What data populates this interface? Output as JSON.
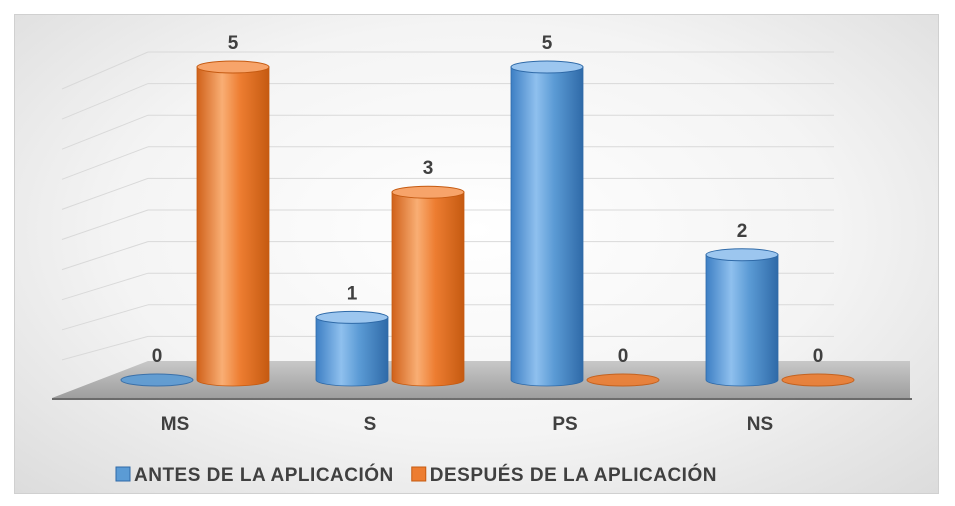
{
  "chart_data": {
    "type": "bar",
    "categories": [
      "MS",
      "S",
      "PS",
      "NS"
    ],
    "series": [
      {
        "name": "ANTES DE LA APLICACIÓN",
        "values": [
          0,
          1,
          5,
          2
        ],
        "color": "#5b9bd5"
      },
      {
        "name": "DESPUÉS DE LA APLICACIÓN",
        "values": [
          5,
          3,
          0,
          0
        ],
        "color": "#ed7d31"
      }
    ],
    "ylim": [
      0,
      5
    ],
    "grid": true,
    "style": "3d-cylinder",
    "legend_position": "bottom",
    "data_labels": true
  }
}
